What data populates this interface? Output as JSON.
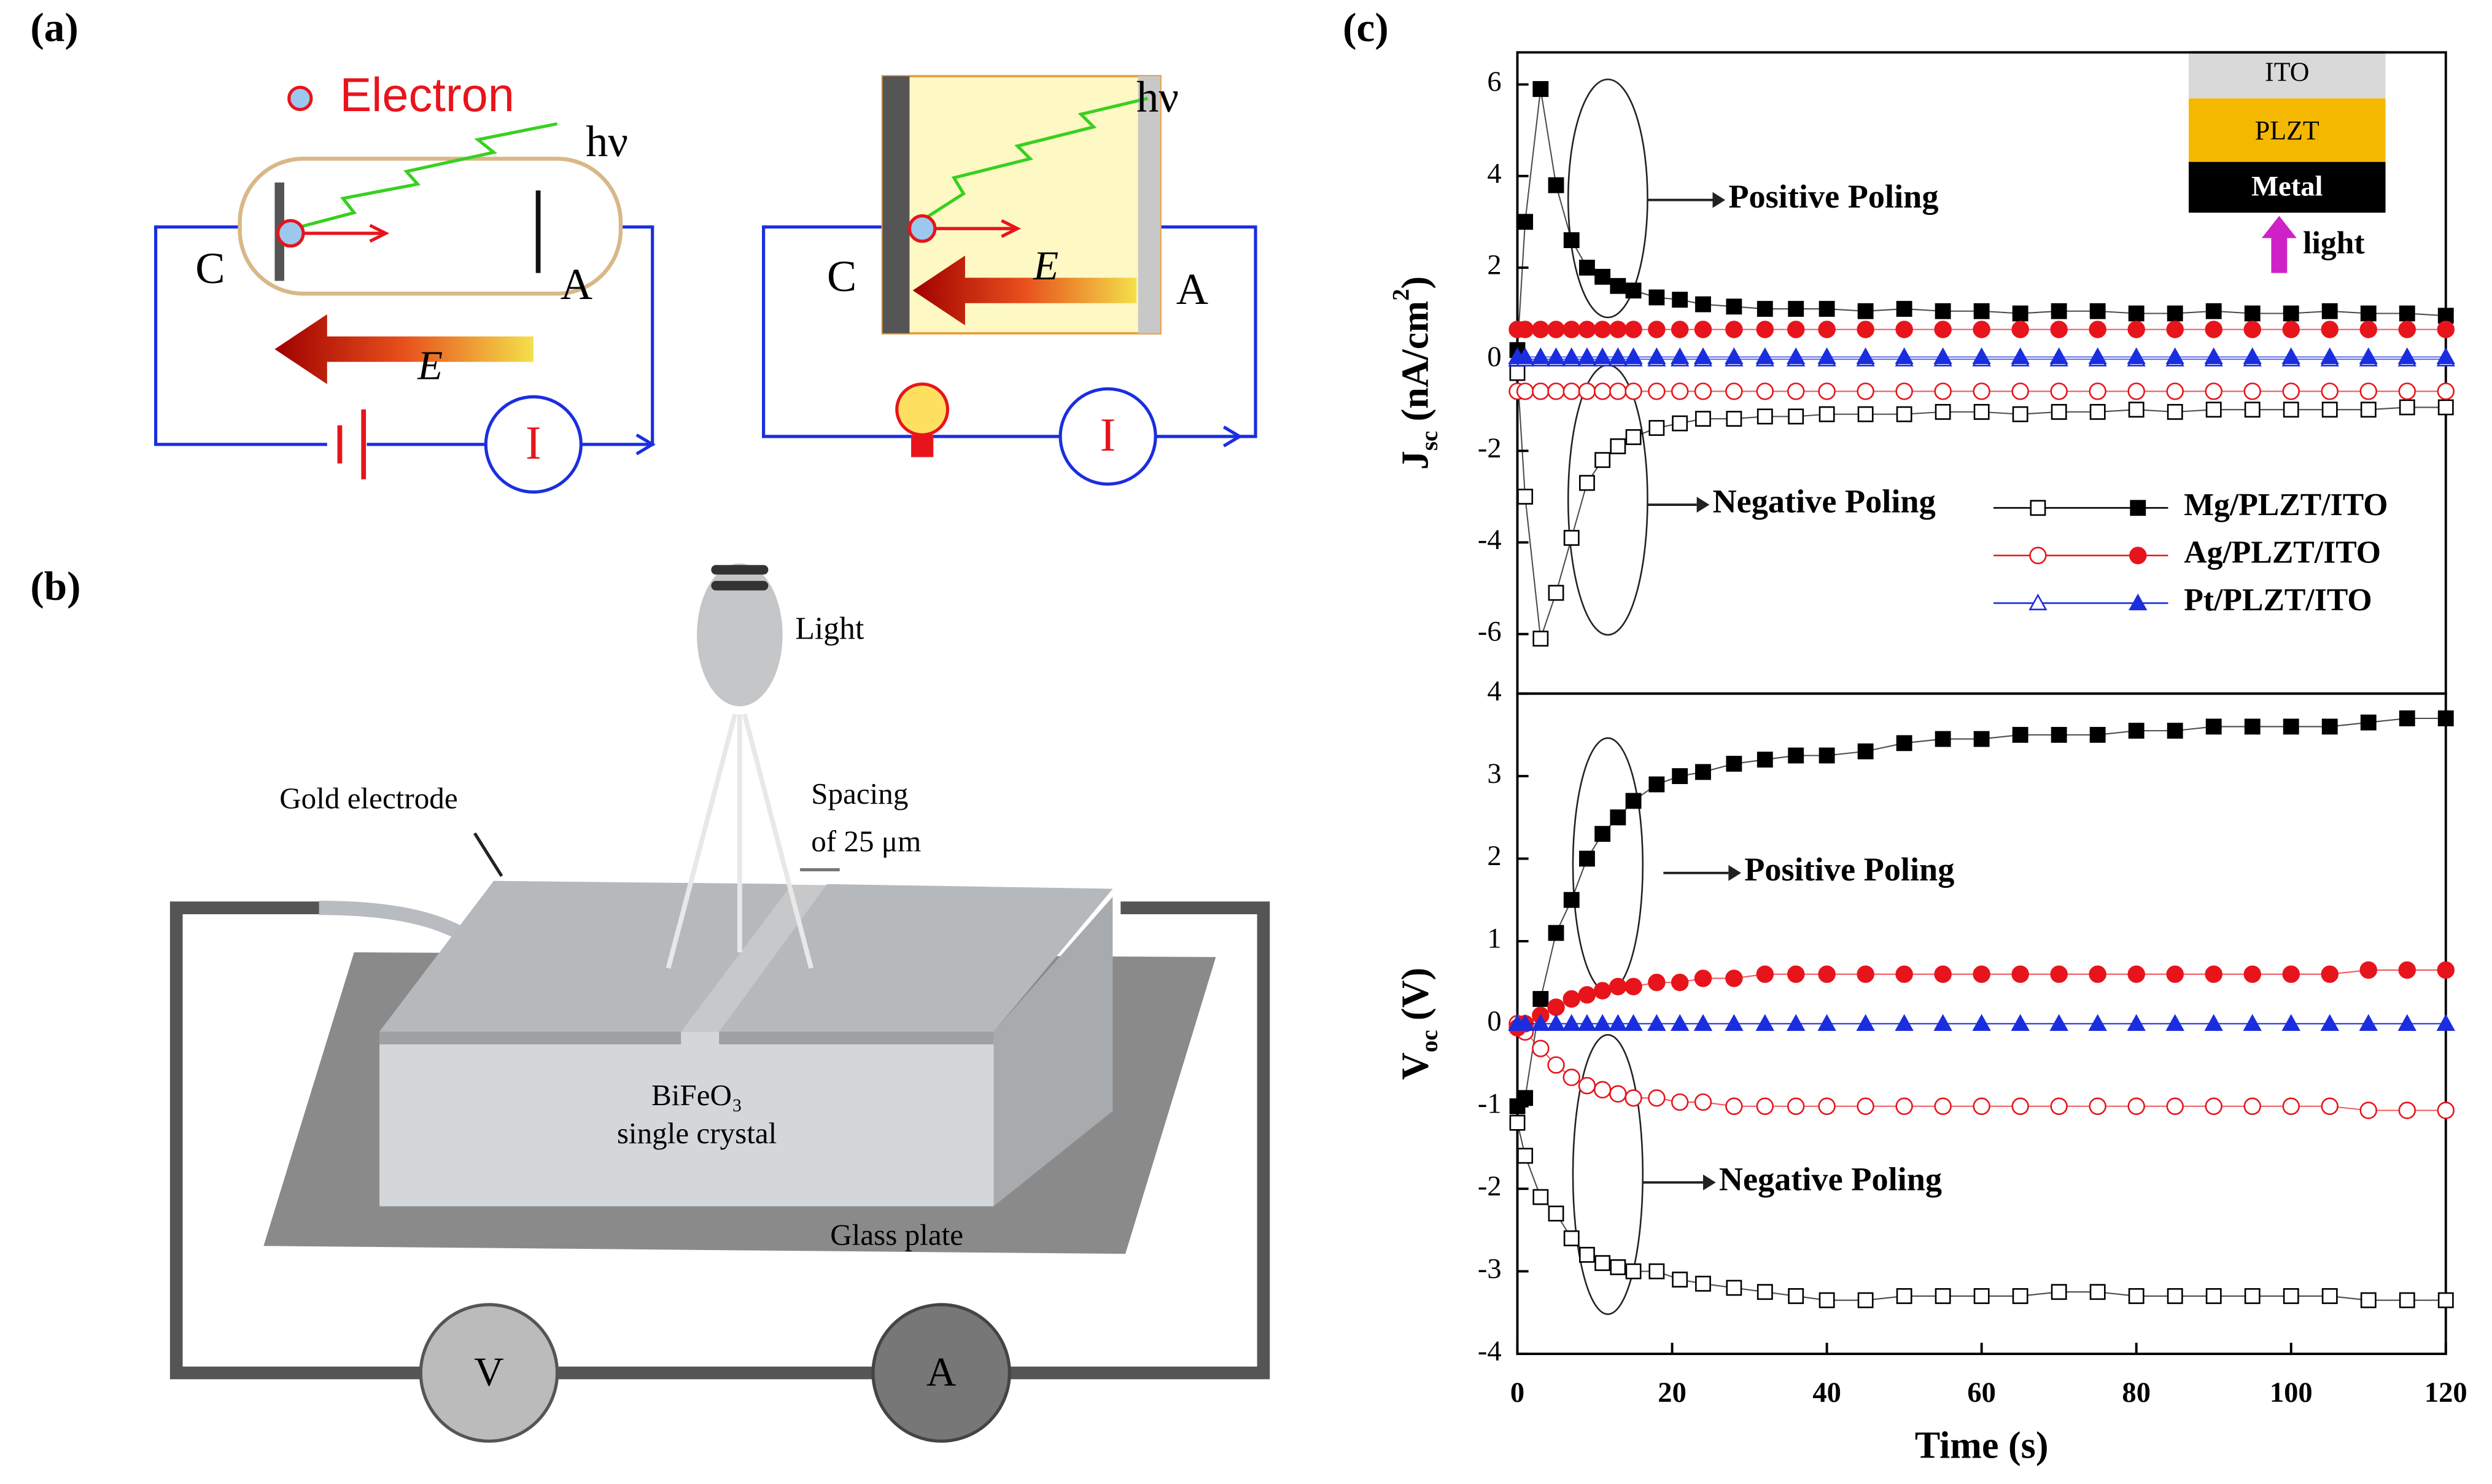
{
  "panels": {
    "a": "(a)",
    "b": "(b)",
    "c": "(c)"
  },
  "diagram_a": {
    "left": {
      "electron": "Electron",
      "hv": "hν",
      "cathode": "C",
      "anode": "A",
      "field": "E",
      "current": "I"
    },
    "right": {
      "hv": "hν",
      "cathode": "C",
      "anode": "A",
      "field": "E",
      "current": "I"
    }
  },
  "diagram_b": {
    "light": "Light",
    "gold": "Gold electrode",
    "spacing": [
      "Spacing",
      "of 25 μm"
    ],
    "crystal": [
      "BiFeO₃",
      "single crystal"
    ],
    "glass": "Glass plate",
    "voltmeter": "V",
    "ammeter": "A"
  },
  "chart_data": [
    {
      "type": "scatter-line",
      "ylabel": [
        "J",
        "sc",
        "(nA/cm",
        "2",
        ")"
      ],
      "xlim": [
        0,
        120
      ],
      "ylim": [
        -7.3,
        6.7
      ],
      "yticks": [
        -6,
        -4,
        -2,
        0,
        2,
        4,
        6
      ],
      "annotations": [
        "Positive Poling",
        "Negative Poling"
      ],
      "inset": {
        "layers": [
          "ITO",
          "PLZT",
          "Metal"
        ],
        "light": "light"
      },
      "x": [
        0,
        1,
        3,
        5,
        7,
        9,
        11,
        13,
        15,
        18,
        21,
        24,
        28,
        32,
        36,
        40,
        45,
        50,
        55,
        60,
        65,
        70,
        75,
        80,
        85,
        90,
        95,
        100,
        105,
        110,
        115,
        120
      ],
      "series": [
        {
          "name": "Mg/PLZT/ITO",
          "color": "#000000",
          "marker": "square",
          "values": [
            0.2,
            3.0,
            5.9,
            3.8,
            2.6,
            2.0,
            1.8,
            1.6,
            1.5,
            1.35,
            1.3,
            1.2,
            1.15,
            1.1,
            1.1,
            1.1,
            1.05,
            1.1,
            1.05,
            1.05,
            1.0,
            1.05,
            1.05,
            1.0,
            1.0,
            1.05,
            1.0,
            1.0,
            1.05,
            1.0,
            1.0,
            0.95
          ],
          "values_negative": [
            -0.3,
            -3.0,
            -6.1,
            -5.1,
            -3.9,
            -2.7,
            -2.2,
            -1.9,
            -1.7,
            -1.5,
            -1.4,
            -1.3,
            -1.3,
            -1.25,
            -1.25,
            -1.2,
            -1.2,
            -1.2,
            -1.15,
            -1.15,
            -1.2,
            -1.15,
            -1.15,
            -1.1,
            -1.15,
            -1.1,
            -1.1,
            -1.1,
            -1.1,
            -1.1,
            -1.05,
            -1.05
          ]
        },
        {
          "name": "Ag/PLZT/ITO",
          "color": "#e8141c",
          "marker": "circle",
          "values": [
            0.65,
            0.65,
            0.65,
            0.65,
            0.65,
            0.65,
            0.65,
            0.65,
            0.65,
            0.65,
            0.65,
            0.65,
            0.65,
            0.65,
            0.65,
            0.65,
            0.65,
            0.65,
            0.65,
            0.65,
            0.65,
            0.65,
            0.65,
            0.65,
            0.65,
            0.65,
            0.65,
            0.65,
            0.65,
            0.65,
            0.65,
            0.65
          ],
          "values_negative": [
            -0.7,
            -0.7,
            -0.7,
            -0.7,
            -0.7,
            -0.7,
            -0.7,
            -0.7,
            -0.7,
            -0.7,
            -0.7,
            -0.7,
            -0.7,
            -0.7,
            -0.7,
            -0.7,
            -0.7,
            -0.7,
            -0.7,
            -0.7,
            -0.7,
            -0.7,
            -0.7,
            -0.7,
            -0.7,
            -0.7,
            -0.7,
            -0.7,
            -0.7,
            -0.7,
            -0.7,
            -0.7
          ]
        },
        {
          "name": "Pt/PLZT/ITO",
          "color": "#1a2ee0",
          "marker": "triangle",
          "values": [
            0.05,
            0.05,
            0.05,
            0.05,
            0.05,
            0.05,
            0.05,
            0.05,
            0.05,
            0.05,
            0.05,
            0.05,
            0.05,
            0.05,
            0.05,
            0.05,
            0.05,
            0.05,
            0.05,
            0.05,
            0.05,
            0.05,
            0.05,
            0.05,
            0.05,
            0.05,
            0.05,
            0.05,
            0.05,
            0.05,
            0.05,
            0.05
          ],
          "values_negative": [
            0,
            0,
            0,
            0,
            0,
            0,
            0,
            0,
            0,
            0,
            0,
            0,
            0,
            0,
            0,
            0,
            0,
            0,
            0,
            0,
            0,
            0,
            0,
            0,
            0,
            0,
            0,
            0,
            0,
            0,
            0,
            0
          ]
        }
      ]
    },
    {
      "type": "scatter-line",
      "ylabel": [
        "V",
        "oc",
        "(V)"
      ],
      "xlabel": "Time (s)",
      "xlim": [
        0,
        120
      ],
      "xticks": [
        0,
        20,
        40,
        60,
        80,
        100,
        120
      ],
      "ylim": [
        -4,
        4
      ],
      "yticks": [
        -4,
        -3,
        -2,
        -1,
        0,
        1,
        2,
        3,
        4
      ],
      "annotations": [
        "Positive Poling",
        "Negative Poling"
      ],
      "x": [
        0,
        1,
        3,
        5,
        7,
        9,
        11,
        13,
        15,
        18,
        21,
        24,
        28,
        32,
        36,
        40,
        45,
        50,
        55,
        60,
        65,
        70,
        75,
        80,
        85,
        90,
        95,
        100,
        105,
        110,
        115,
        120
      ],
      "series": [
        {
          "color": "#000000",
          "marker": "square",
          "values": [
            -1.0,
            -0.9,
            0.3,
            1.1,
            1.5,
            2.0,
            2.3,
            2.5,
            2.7,
            2.9,
            3.0,
            3.05,
            3.15,
            3.2,
            3.25,
            3.25,
            3.3,
            3.4,
            3.45,
            3.45,
            3.5,
            3.5,
            3.5,
            3.55,
            3.55,
            3.6,
            3.6,
            3.6,
            3.6,
            3.65,
            3.7,
            3.7
          ],
          "values_negative": [
            -1.2,
            -1.6,
            -2.1,
            -2.3,
            -2.6,
            -2.8,
            -2.9,
            -2.95,
            -3.0,
            -3.0,
            -3.1,
            -3.15,
            -3.2,
            -3.25,
            -3.3,
            -3.35,
            -3.35,
            -3.3,
            -3.3,
            -3.3,
            -3.3,
            -3.25,
            -3.25,
            -3.3,
            -3.3,
            -3.3,
            -3.3,
            -3.3,
            -3.3,
            -3.35,
            -3.35,
            -3.35
          ]
        },
        {
          "color": "#e8141c",
          "marker": "circle",
          "values": [
            -0.05,
            0.0,
            0.1,
            0.2,
            0.3,
            0.35,
            0.4,
            0.45,
            0.45,
            0.5,
            0.5,
            0.55,
            0.55,
            0.6,
            0.6,
            0.6,
            0.6,
            0.6,
            0.6,
            0.6,
            0.6,
            0.6,
            0.6,
            0.6,
            0.6,
            0.6,
            0.6,
            0.6,
            0.6,
            0.65,
            0.65,
            0.65
          ],
          "values_negative": [
            0.0,
            -0.1,
            -0.3,
            -0.5,
            -0.65,
            -0.75,
            -0.8,
            -0.85,
            -0.9,
            -0.9,
            -0.95,
            -0.95,
            -1.0,
            -1.0,
            -1.0,
            -1.0,
            -1.0,
            -1.0,
            -1.0,
            -1.0,
            -1.0,
            -1.0,
            -1.0,
            -1.0,
            -1.0,
            -1.0,
            -1.0,
            -1.0,
            -1.0,
            -1.05,
            -1.05,
            -1.05
          ]
        },
        {
          "color": "#1a2ee0",
          "marker": "triangle",
          "values": [
            0,
            0,
            0,
            0,
            0,
            0,
            0,
            0,
            0,
            0,
            0,
            0,
            0,
            0,
            0,
            0,
            0,
            0,
            0,
            0,
            0,
            0,
            0,
            0,
            0,
            0,
            0,
            0,
            0,
            0,
            0,
            0
          ],
          "values_negative": [
            0,
            0,
            0,
            0,
            0,
            0,
            0,
            0,
            0,
            0,
            0,
            0,
            0,
            0,
            0,
            0,
            0,
            0,
            0,
            0,
            0,
            0,
            0,
            0,
            0,
            0,
            0,
            0,
            0,
            0,
            0,
            0
          ]
        }
      ]
    }
  ]
}
